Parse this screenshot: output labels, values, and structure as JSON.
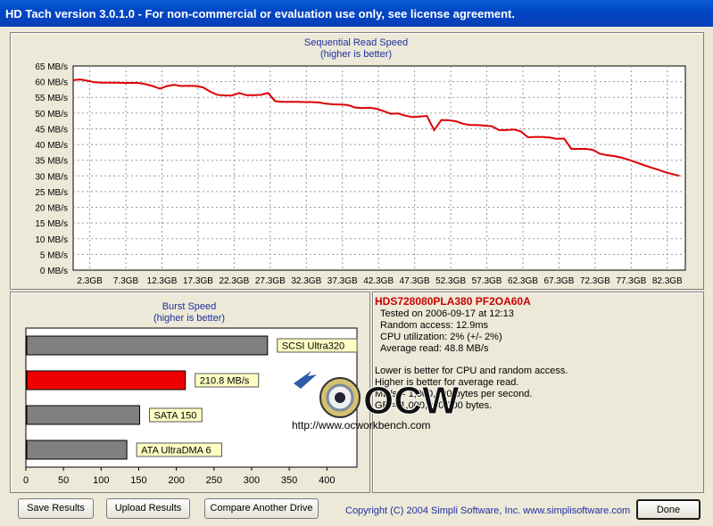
{
  "window": {
    "title": "HD Tach version 3.0.1.0  - For non-commercial or evaluation use only, see license agreement."
  },
  "chart_data": [
    {
      "type": "line",
      "title": "Sequential Read Speed",
      "subtitle": "(higher is better)",
      "y_unit": "MB/s",
      "ylim": [
        0,
        65
      ],
      "y_ticks": [
        "0 MB/s",
        "5 MB/s",
        "10 MB/s",
        "15 MB/s",
        "20 MB/s",
        "25 MB/s",
        "30 MB/s",
        "35 MB/s",
        "40 MB/s",
        "45 MB/s",
        "50 MB/s",
        "55 MB/s",
        "60 MB/s",
        "65 MB/s"
      ],
      "x_unit": "GB",
      "xlim": [
        0,
        84.8
      ],
      "x_ticks": [
        "2.3GB",
        "7.3GB",
        "12.3GB",
        "17.3GB",
        "22.3GB",
        "27.3GB",
        "32.3GB",
        "37.3GB",
        "42.3GB",
        "47.3GB",
        "52.3GB",
        "57.3GB",
        "62.3GB",
        "67.3GB",
        "72.3GB",
        "77.3GB",
        "82.3GB"
      ],
      "grid": true,
      "series": [
        {
          "color": "#dd0000",
          "x": [
            0,
            1,
            2,
            3,
            4,
            5,
            6,
            7,
            8,
            9,
            10,
            11,
            12,
            13,
            14,
            15,
            16,
            17,
            18,
            19,
            20,
            21,
            22,
            23,
            24,
            25,
            26,
            27,
            28,
            29,
            30,
            31,
            32,
            33,
            34,
            35,
            36,
            37,
            38,
            39,
            40,
            41,
            42,
            43,
            44,
            45,
            46,
            47,
            48,
            49,
            50,
            51,
            52,
            53,
            54,
            55,
            56,
            57,
            58,
            59,
            60,
            61,
            62,
            63,
            64,
            65,
            66,
            67,
            68,
            69,
            70,
            71,
            72,
            73,
            74,
            75,
            76,
            77,
            78,
            79,
            80,
            81,
            82,
            83,
            84
          ],
          "y": [
            60.5,
            60.7,
            60.3,
            59.8,
            59.7,
            59.7,
            59.7,
            59.6,
            59.6,
            59.6,
            59.2,
            58.6,
            57.8,
            58.6,
            59.0,
            58.6,
            58.7,
            58.6,
            58.2,
            56.8,
            55.8,
            55.6,
            55.6,
            56.4,
            55.7,
            55.7,
            55.8,
            56.4,
            53.8,
            53.6,
            53.6,
            53.6,
            53.5,
            53.5,
            53.4,
            53.0,
            52.8,
            52.7,
            52.6,
            51.8,
            51.6,
            51.7,
            51.4,
            50.6,
            49.8,
            49.9,
            49.2,
            48.7,
            48.9,
            49.1,
            44.6,
            47.8,
            47.7,
            47.4,
            46.6,
            46.2,
            46.2,
            46.0,
            45.8,
            44.6,
            44.6,
            44.8,
            44.2,
            42.3,
            42.4,
            42.4,
            42.2,
            41.8,
            41.9,
            38.6,
            38.6,
            38.6,
            38.3,
            37.0,
            36.6,
            36.3,
            35.8,
            35.1,
            34.3,
            33.5,
            32.7,
            32.0,
            31.2,
            30.6,
            30.0
          ]
        }
      ]
    },
    {
      "type": "bar",
      "orientation": "horizontal",
      "title": "Burst Speed",
      "subtitle": "(higher is better)",
      "xlim": [
        0,
        440
      ],
      "x_ticks": [
        "0",
        "50",
        "100",
        "150",
        "200",
        "250",
        "300",
        "350",
        "400"
      ],
      "grid": false,
      "bars": [
        {
          "label": "SCSI Ultra320",
          "value": 320,
          "color": "#808080"
        },
        {
          "label": "210.8 MB/s",
          "value": 210.8,
          "color": "#ee0000"
        },
        {
          "label": "SATA 150",
          "value": 150,
          "color": "#808080"
        },
        {
          "label": "ATA UltraDMA 6",
          "value": 133,
          "color": "#808080"
        }
      ]
    }
  ],
  "info": {
    "drive_name": "HDS728080PLA380 PF2OA60A",
    "tested_on": "Tested on 2006-09-17 at 12:13",
    "random_access": "Random access: 12.9ms",
    "cpu_utilization": "CPU utilization: 2% (+/- 2%)",
    "average_read": "Average read: 48.8 MB/s",
    "note_1": "Lower is better for CPU and random access.",
    "note_2": "Higher is better for average read.",
    "note_3": "MB/s = 1,000,000 bytes per second.",
    "note_4": "GB = 1,000,000,000 bytes."
  },
  "watermark": {
    "logo_text": "OCW",
    "url": "http://www.ocworkbench.com"
  },
  "footer": {
    "save_label": "Save Results",
    "upload_label": "Upload Results",
    "compare_label": "Compare Another Drive",
    "copyright": "Copyright (C) 2004 Simpli Software, Inc. www.simplisoftware.com",
    "done_label": "Done"
  },
  "colors": {
    "title_bar": "#0a5fd6",
    "accent_text": "#1f2fa0",
    "drive_name": "#cc0000",
    "read_line": "#dd0000"
  }
}
